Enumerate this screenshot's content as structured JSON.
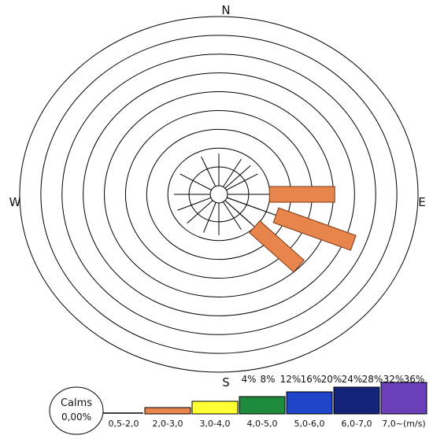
{
  "chart_data": {
    "type": "wind-rose",
    "directions": {
      "north": "N",
      "south": "S",
      "east": "E",
      "west": "W"
    },
    "radial_tick_labels": [
      "4%",
      "8%",
      "12%",
      "16%",
      "20%",
      "24%",
      "28%",
      "32%",
      "36%"
    ],
    "radial_max_percent": 36,
    "ring_count": 9,
    "calms": {
      "label": "Calms",
      "value": "0,00%"
    },
    "sectors": [
      {
        "direction_deg": 90,
        "speed_class": "2,0-3,0",
        "percent": 14.5
      },
      {
        "direction_deg": 112,
        "speed_class": "2,0-3,0",
        "percent": 20
      },
      {
        "direction_deg": 112,
        "speed_class": "3,0-4,0",
        "percent": 0
      },
      {
        "direction_deg": 135,
        "speed_class": "2,0-3,0",
        "percent": 14
      }
    ],
    "spokes_deg": [
      0,
      30,
      45,
      60,
      90,
      112,
      135,
      150,
      180,
      200,
      225,
      247,
      270,
      300,
      337
    ],
    "legend": [
      {
        "label": "0,5-2,0",
        "color": "#000000"
      },
      {
        "label": "2,0-3,0",
        "color": "#e8854d"
      },
      {
        "label": "3,0-4,0",
        "color": "#ffff33"
      },
      {
        "label": "4,0-5,0",
        "color": "#1e8a3c"
      },
      {
        "label": "5,0-6,0",
        "color": "#1e45c8"
      },
      {
        "label": "6,0-7,0",
        "color": "#14237a"
      },
      {
        "label": "7,0~(m/s)",
        "color": "#6a3fb8"
      }
    ],
    "colors": {
      "petal": "#e8854d",
      "petal_stroke": "#7a3a14",
      "ring_stroke": "#000000"
    }
  }
}
